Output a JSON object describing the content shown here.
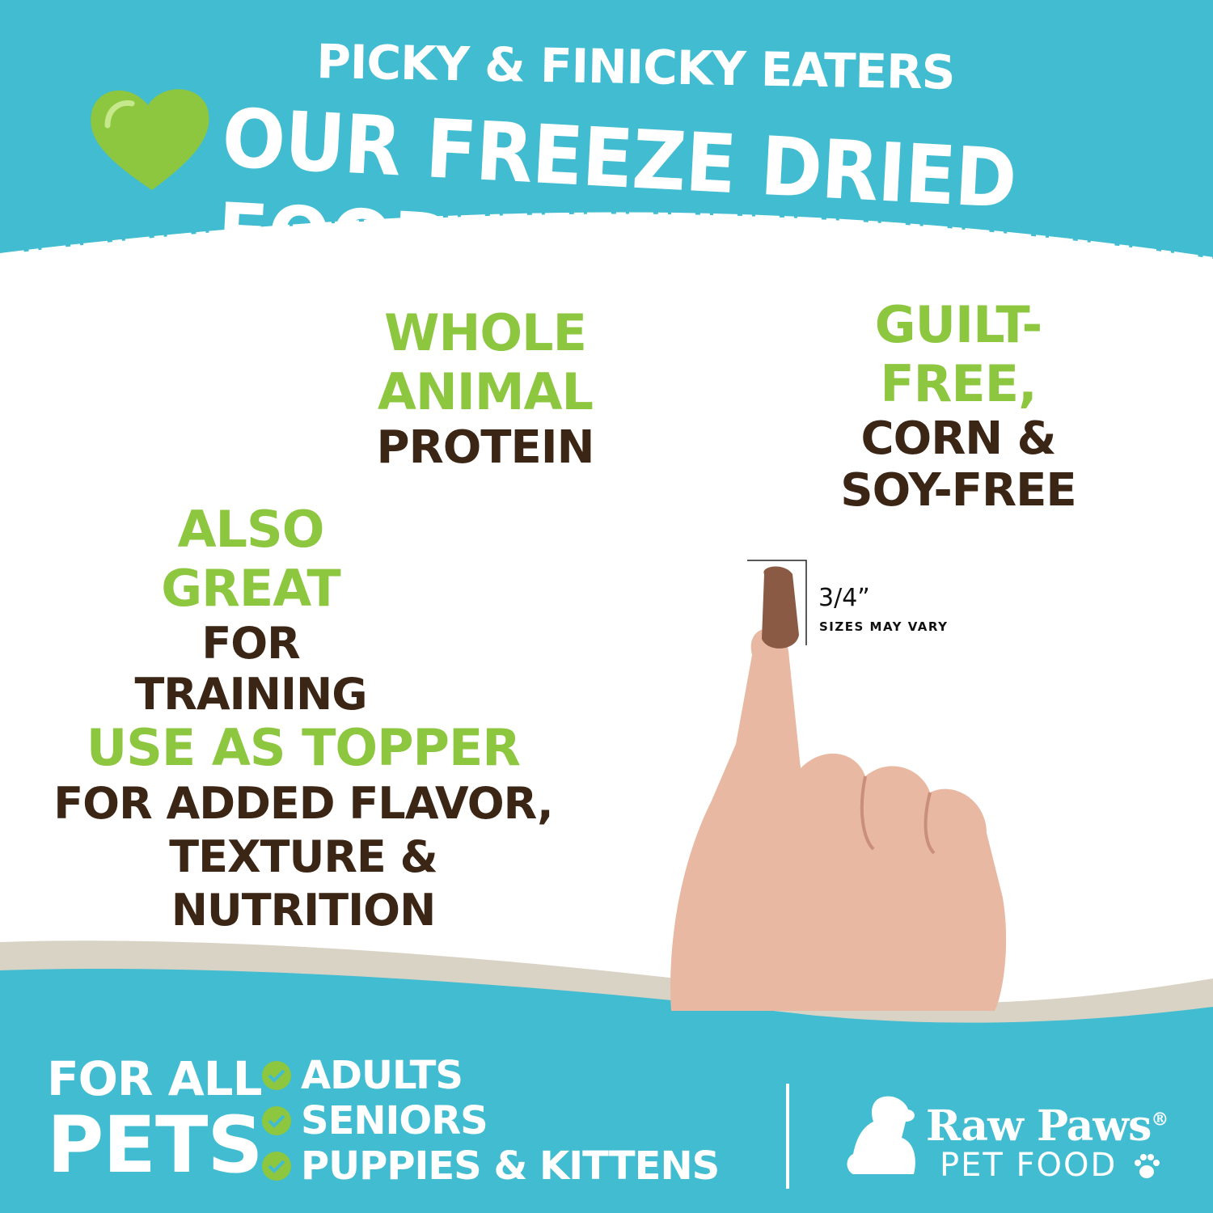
{
  "header": {
    "line1": "PICKY & FINICKY EATERS",
    "line2": "OUR FREEZE DRIED FOOD",
    "heart_icon": "heart-icon"
  },
  "features": [
    {
      "highlight": "WHOLE ANIMAL",
      "lines": [
        "PROTEIN"
      ]
    },
    {
      "highlight": "GUILT-FREE,",
      "lines": [
        "CORN &",
        "SOY-FREE"
      ]
    },
    {
      "highlight": "ALSO GREAT",
      "lines": [
        "FOR TRAINING"
      ]
    },
    {
      "highlight": "USE AS TOPPER",
      "lines": [
        "FOR ADDED FLAVOR,",
        "TEXTURE & NUTRITION"
      ]
    }
  ],
  "size_note": {
    "size": "3/4”",
    "caption": "SIZES MAY VARY"
  },
  "footer": {
    "for_all": "FOR ALL",
    "pets": "PETS",
    "list": [
      "ADULTS",
      "SENIORS",
      "PUPPIES & KITTENS"
    ],
    "check_icon": "check-circle-icon"
  },
  "brand": {
    "name": "Raw Paws",
    "registered": "®",
    "sub": "PET FOOD"
  },
  "colors": {
    "teal": "#42bcd1",
    "green": "#8dc63f",
    "brown": "#3b2616",
    "beige": "#d9d3c5"
  }
}
